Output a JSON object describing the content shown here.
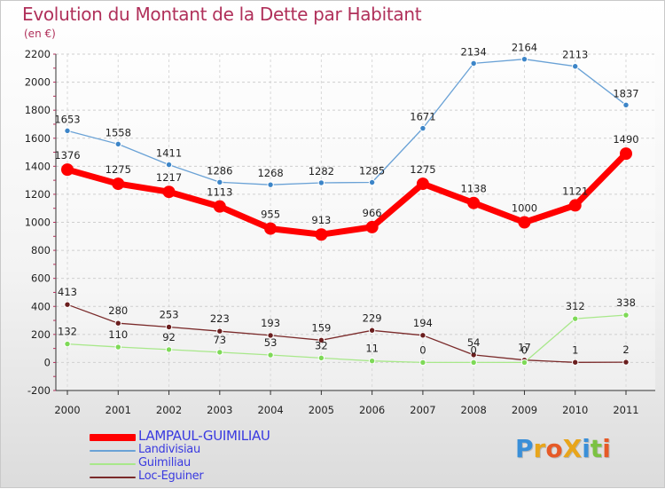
{
  "title": "Evolution du Montant de la Dette par Habitant",
  "unit": "(en €)",
  "brand": "ProXiti",
  "chart_data": {
    "type": "line",
    "title": "Evolution du Montant de la Dette par Habitant",
    "ylabel": "(en €)",
    "xlabel": "",
    "ylim": [
      -200,
      2200
    ],
    "yticks": [
      -200,
      0,
      200,
      400,
      600,
      800,
      1000,
      1200,
      1400,
      1600,
      1800,
      2000,
      2200
    ],
    "categories": [
      "2000",
      "2001",
      "2002",
      "2003",
      "2004",
      "2005",
      "2006",
      "2007",
      "2008",
      "2009",
      "2010",
      "2011"
    ],
    "grid": true,
    "legend": "bottom-left",
    "series": [
      {
        "name": "LAMPAUL-GUIMILIAU",
        "color": "#ff0000",
        "values": [
          1376,
          1275,
          1217,
          1113,
          955,
          913,
          966,
          1275,
          1138,
          1000,
          1121,
          1490
        ]
      },
      {
        "name": "Landivisiau",
        "color": "#5b9bd5",
        "values": [
          1653,
          1558,
          1411,
          1286,
          1268,
          1282,
          1285,
          1671,
          2134,
          2164,
          2113,
          1837
        ]
      },
      {
        "name": "Guimiliau",
        "color": "#99ee77",
        "values": [
          132,
          110,
          92,
          73,
          53,
          32,
          11,
          0,
          0,
          0,
          312,
          338
        ]
      },
      {
        "name": "Loc-Eguiner",
        "color": "#772222",
        "values": [
          413,
          280,
          253,
          223,
          193,
          159,
          229,
          194,
          54,
          17,
          1,
          2
        ]
      }
    ]
  }
}
